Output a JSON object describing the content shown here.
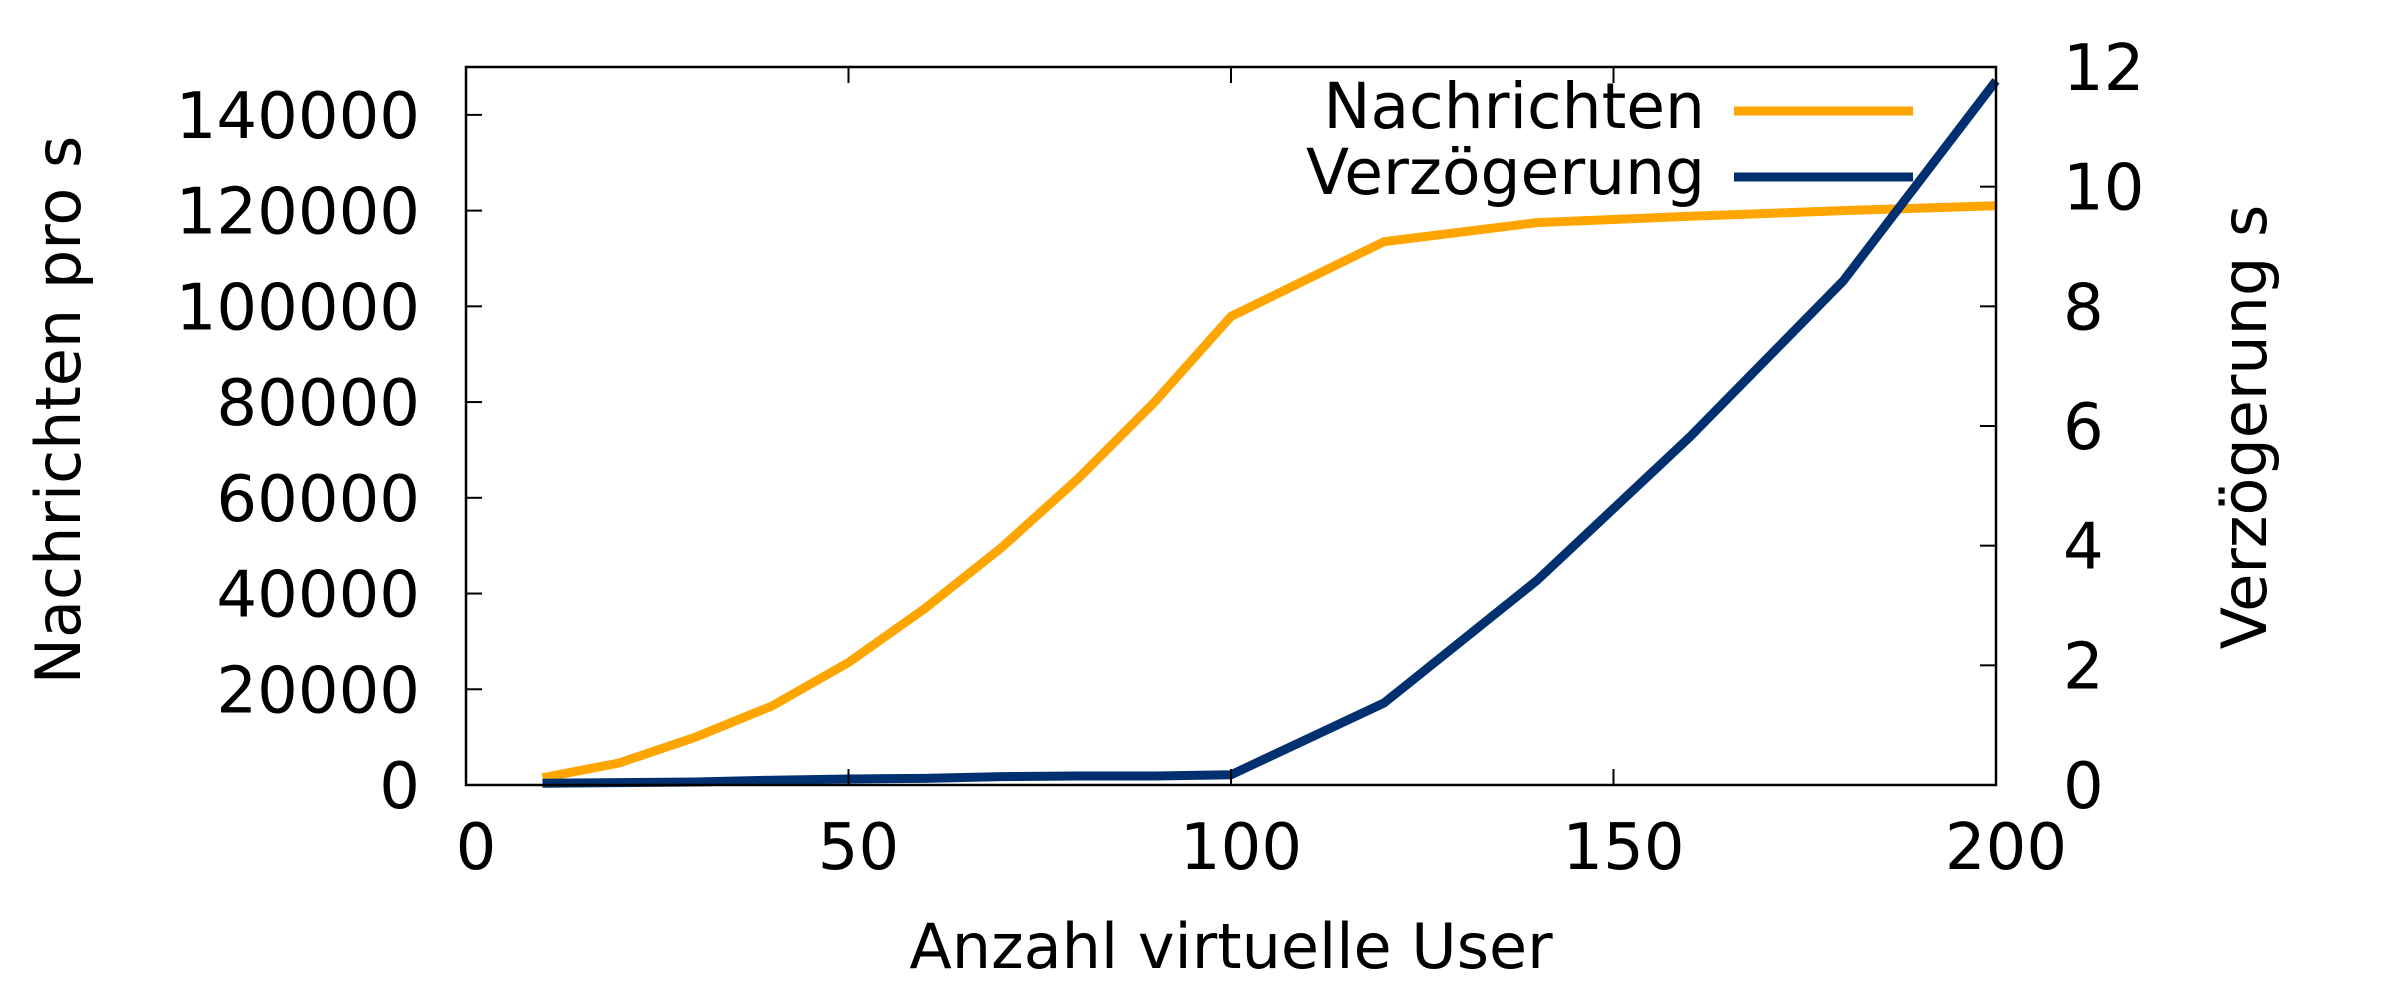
{
  "chart_data": {
    "type": "line",
    "title": "",
    "xlabel": "Anzahl virtuelle User",
    "ylabel": "Nachrichten pro s",
    "y2label": "Verzögerung s",
    "xlim": [
      0,
      200
    ],
    "ylim": [
      0,
      150000
    ],
    "y2lim": [
      0,
      12
    ],
    "grid": false,
    "legend_position": "top-right inside",
    "x_ticks": [
      0,
      50,
      100,
      150,
      200
    ],
    "y_ticks": [
      0,
      20000,
      40000,
      60000,
      80000,
      100000,
      120000,
      140000
    ],
    "y2_ticks": [
      0,
      2,
      4,
      6,
      8,
      10,
      12
    ],
    "x": [
      10,
      20,
      30,
      40,
      50,
      60,
      70,
      80,
      90,
      100,
      120,
      140,
      160,
      180,
      200
    ],
    "series": [
      {
        "name": "Nachrichten",
        "axis": "left",
        "color": "#FFA500",
        "values": [
          1500,
          4600,
          10000,
          16500,
          25600,
          36900,
          49600,
          64000,
          80000,
          97900,
          113500,
          117500,
          118800,
          120000,
          121000
        ]
      },
      {
        "name": "Verzögerung",
        "axis": "right",
        "color": "#00306F",
        "values": [
          0.03,
          0.04,
          0.05,
          0.08,
          0.1,
          0.11,
          0.14,
          0.15,
          0.15,
          0.17,
          1.37,
          3.42,
          5.82,
          8.42,
          11.77
        ]
      }
    ]
  },
  "labels": {
    "xlabel": "Anzahl virtuelle User",
    "ylabel": "Nachrichten pro s",
    "y2label": "Verzögerung s"
  },
  "legend": [
    {
      "label": "Nachrichten",
      "color": "#FFA500"
    },
    {
      "label": "Verzögerung",
      "color": "#00306F"
    }
  ]
}
